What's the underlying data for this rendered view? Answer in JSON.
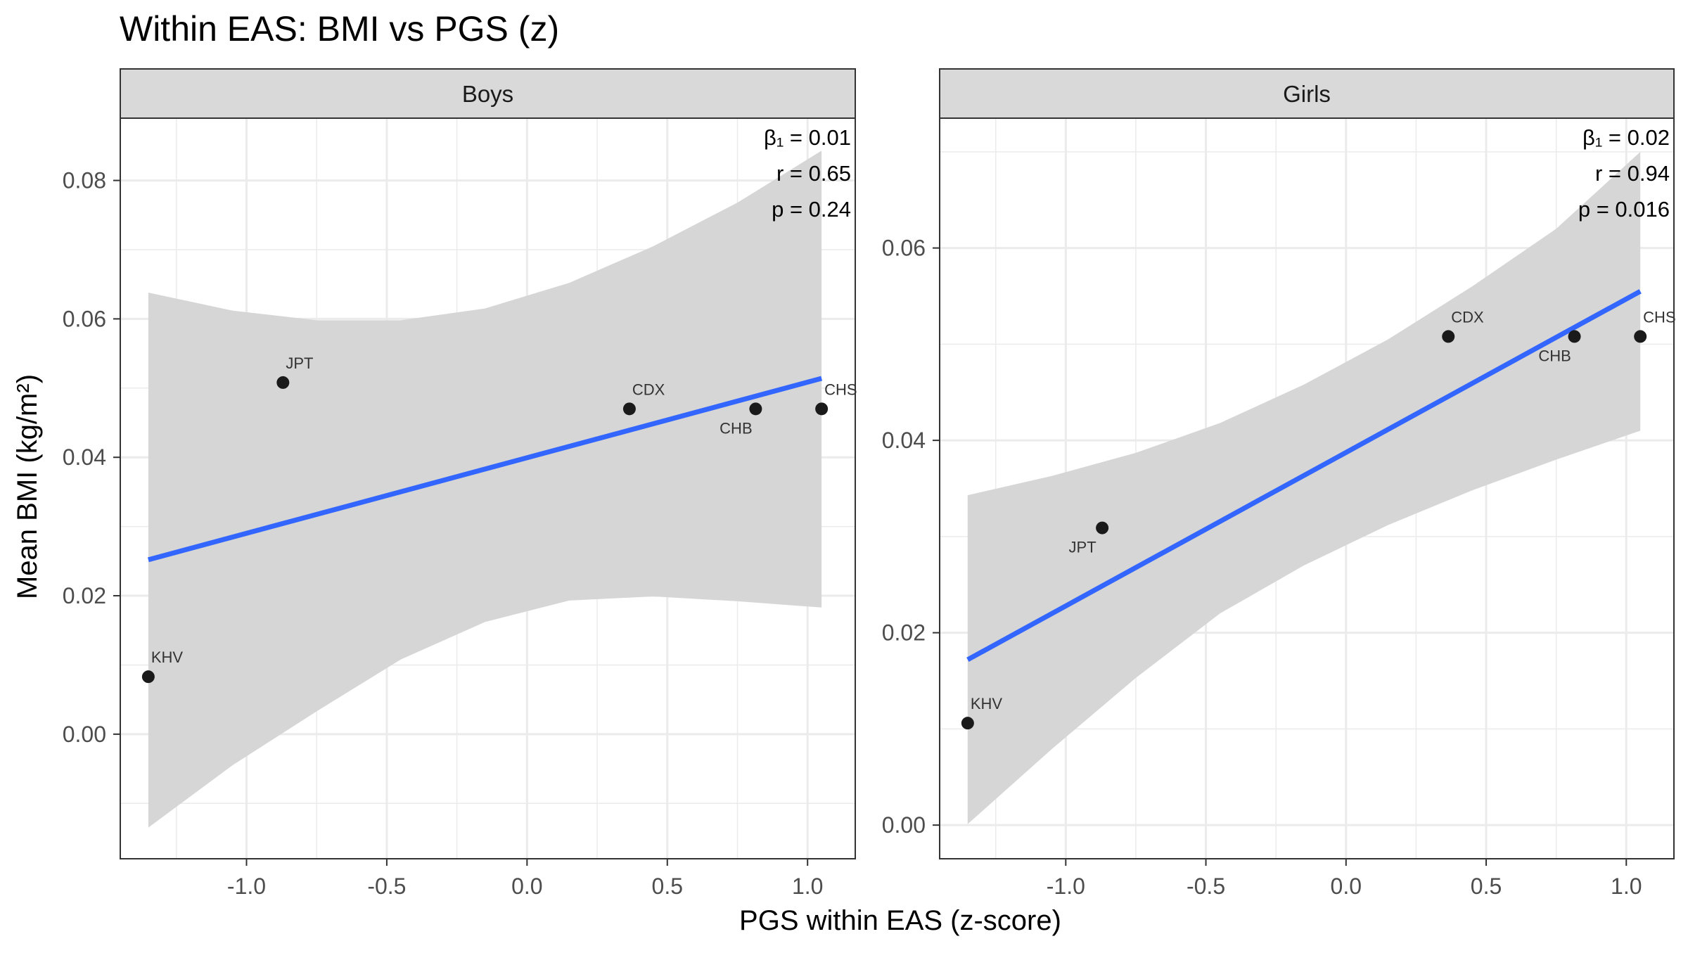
{
  "title": "Within EAS: BMI vs PGS (z)",
  "xlabel": "PGS within EAS (z-score)",
  "ylabel": "Mean BMI (kg/m²)",
  "colors": {
    "line": "#3366FF",
    "ribbon": "#d6d6d6",
    "point": "#1a1a1a",
    "strip": "#d9d9d9",
    "grid": "#ebebeb"
  },
  "chart_data": [
    {
      "type": "scatter",
      "panel": "Boys",
      "xlim": [
        -1.45,
        1.17
      ],
      "ylim": [
        -0.018,
        0.089
      ],
      "x_ticks": [
        -1.0,
        -0.5,
        0.0,
        0.5,
        1.0
      ],
      "x_tick_labels": [
        "-1.0",
        "-0.5",
        "0.0",
        "0.5",
        "1.0"
      ],
      "y_ticks": [
        0.0,
        0.02,
        0.04,
        0.06,
        0.08
      ],
      "y_tick_labels": [
        "0.00",
        "0.02",
        "0.04",
        "0.06",
        "0.08"
      ],
      "points": [
        {
          "label": "KHV",
          "x": -1.35,
          "y": 0.0083,
          "label_pos": "above"
        },
        {
          "label": "JPT",
          "x": -0.87,
          "y": 0.0508,
          "label_pos": "above"
        },
        {
          "label": "CDX",
          "x": 0.365,
          "y": 0.047,
          "label_pos": "above"
        },
        {
          "label": "CHB",
          "x": 0.815,
          "y": 0.047,
          "label_pos": "below-left"
        },
        {
          "label": "CHS",
          "x": 1.05,
          "y": 0.047,
          "label_pos": "above"
        }
      ],
      "fit": {
        "x": [
          -1.35,
          1.05
        ],
        "y": [
          0.0252,
          0.0514
        ]
      },
      "ci_band": {
        "x": [
          -1.35,
          -1.05,
          -0.75,
          -0.45,
          -0.15,
          0.15,
          0.45,
          0.75,
          1.05
        ],
        "upper": [
          0.0638,
          0.0612,
          0.0598,
          0.0598,
          0.0615,
          0.0652,
          0.0705,
          0.0768,
          0.0843
        ],
        "lower": [
          -0.0135,
          -0.0045,
          0.0033,
          0.0108,
          0.0162,
          0.0193,
          0.0199,
          0.0192,
          0.0183
        ]
      },
      "annotation": [
        "β₁ = 0.01",
        "r = 0.65",
        "p = 0.24"
      ]
    },
    {
      "type": "scatter",
      "panel": "Girls",
      "xlim": [
        -1.45,
        1.17
      ],
      "ylim": [
        -0.0035,
        0.0735
      ],
      "x_ticks": [
        -1.0,
        -0.5,
        0.0,
        0.5,
        1.0
      ],
      "x_tick_labels": [
        "-1.0",
        "-0.5",
        "0.0",
        "0.5",
        "1.0"
      ],
      "y_ticks": [
        0.0,
        0.02,
        0.04,
        0.06
      ],
      "y_tick_labels": [
        "0.00",
        "0.02",
        "0.04",
        "0.06"
      ],
      "points": [
        {
          "label": "KHV",
          "x": -1.35,
          "y": 0.0106,
          "label_pos": "above"
        },
        {
          "label": "JPT",
          "x": -0.87,
          "y": 0.0309,
          "label_pos": "below-left"
        },
        {
          "label": "CDX",
          "x": 0.365,
          "y": 0.0508,
          "label_pos": "above"
        },
        {
          "label": "CHB",
          "x": 0.815,
          "y": 0.0508,
          "label_pos": "below-left"
        },
        {
          "label": "CHS",
          "x": 1.05,
          "y": 0.0508,
          "label_pos": "above"
        }
      ],
      "fit": {
        "x": [
          -1.35,
          1.05
        ],
        "y": [
          0.0172,
          0.0555
        ]
      },
      "ci_band": {
        "x": [
          -1.35,
          -1.05,
          -0.75,
          -0.45,
          -0.15,
          0.15,
          0.45,
          0.75,
          1.05
        ],
        "upper": [
          0.0343,
          0.0363,
          0.0387,
          0.0418,
          0.0458,
          0.0505,
          0.056,
          0.062,
          0.07
        ],
        "lower": [
          0.0001,
          0.0079,
          0.0153,
          0.022,
          0.027,
          0.0312,
          0.0348,
          0.038,
          0.041
        ]
      },
      "annotation": [
        "β₁ = 0.02",
        "r = 0.94",
        "p = 0.016"
      ]
    }
  ]
}
